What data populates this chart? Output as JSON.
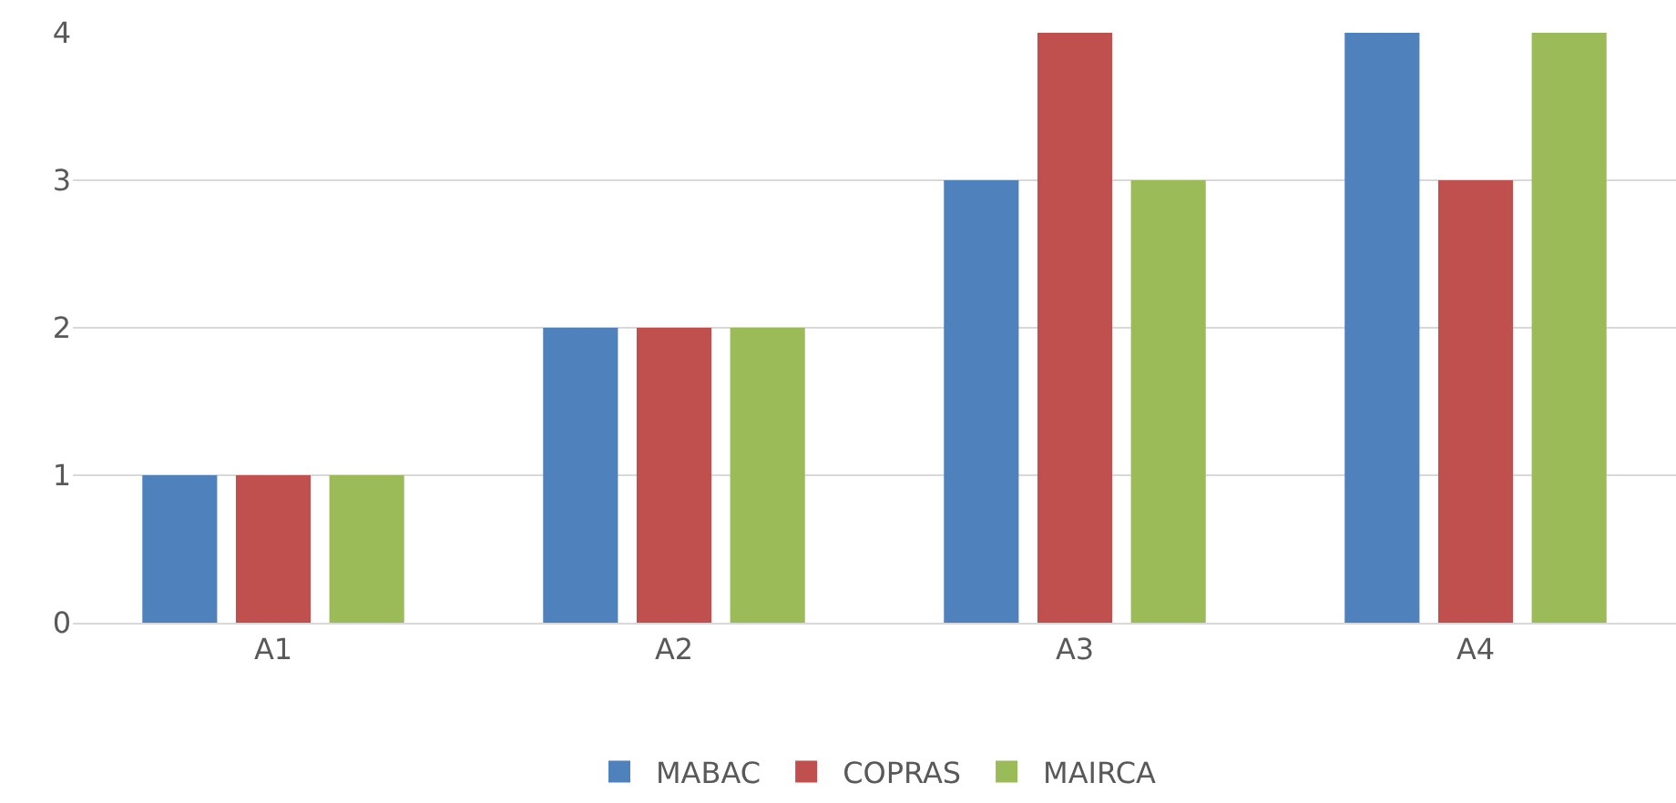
{
  "chart_data": {
    "type": "bar",
    "categories": [
      "A1",
      "A2",
      "A3",
      "A4"
    ],
    "series": [
      {
        "name": "MABAC",
        "color": "#4f81bd",
        "values": [
          1,
          2,
          3,
          4
        ]
      },
      {
        "name": "COPRAS",
        "color": "#c0504d",
        "values": [
          1,
          2,
          4,
          3
        ]
      },
      {
        "name": "MAIRCA",
        "color": "#9bbb59",
        "values": [
          1,
          2,
          3,
          4
        ]
      }
    ],
    "ylim": [
      0,
      4
    ],
    "yticks": [
      0,
      1,
      2,
      3,
      4
    ],
    "grid": "y",
    "legend": "bottom"
  }
}
